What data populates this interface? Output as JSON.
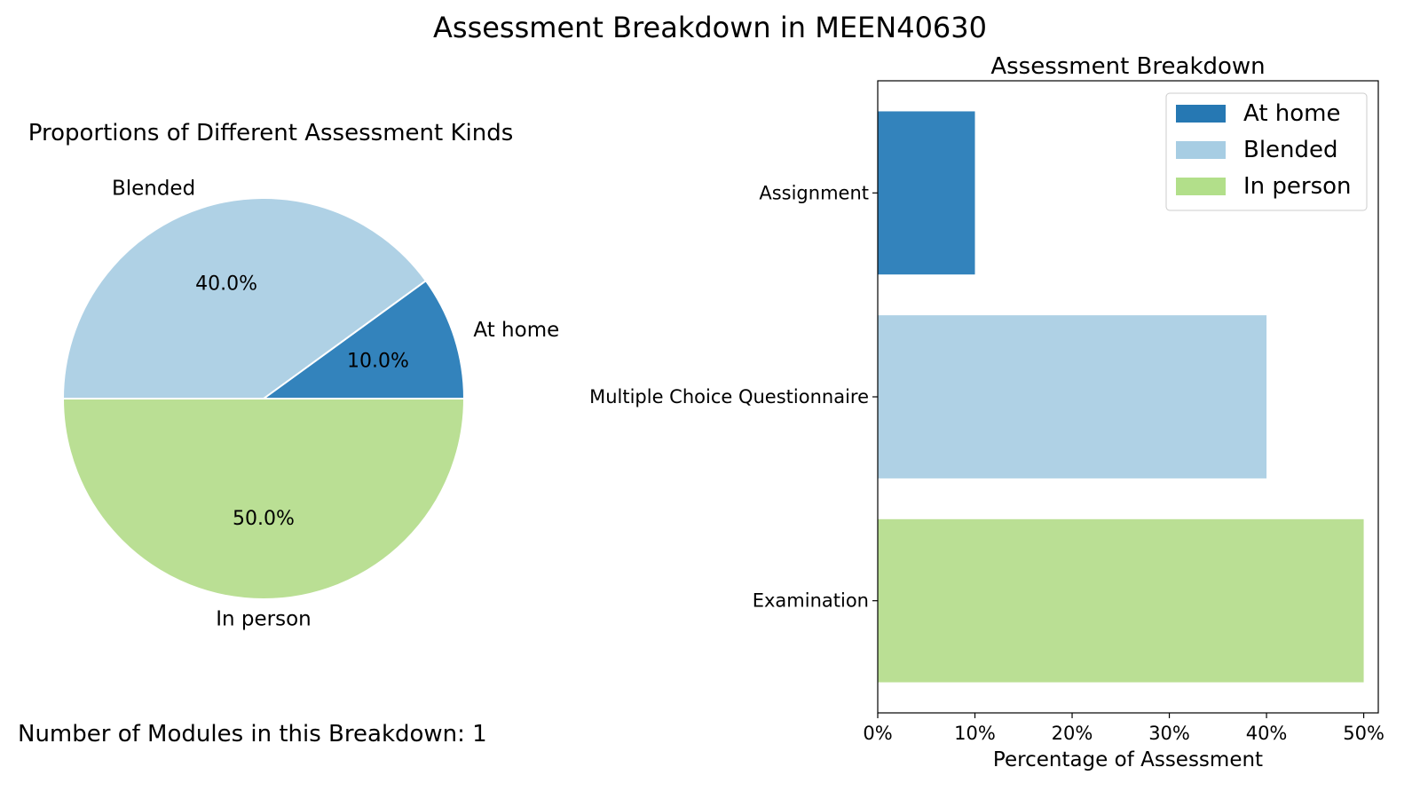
{
  "figure": {
    "title": "Assessment Breakdown in MEEN40630",
    "footer_label": "Number of Modules in this Breakdown: 1"
  },
  "chart_data": [
    {
      "type": "pie",
      "title": "Proportions of Different Assessment Kinds",
      "slices": [
        {
          "label": "At home",
          "value": 10.0,
          "pct_label": "10.0%",
          "color": "#3383bc"
        },
        {
          "label": "Blended",
          "value": 40.0,
          "pct_label": "40.0%",
          "color": "#afd1e5"
        },
        {
          "label": "In person",
          "value": 50.0,
          "pct_label": "50.0%",
          "color": "#badf94"
        }
      ],
      "start_angle_deg": 0,
      "direction": "counterclockwise",
      "edge_color": "#ffffff"
    },
    {
      "type": "bar",
      "orientation": "horizontal",
      "title": "Assessment Breakdown",
      "categories": [
        "Assignment",
        "Multiple Choice Questionnaire",
        "Examination"
      ],
      "values": [
        10,
        40,
        50
      ],
      "colors": [
        "#3383bc",
        "#afd1e5",
        "#badf94"
      ],
      "xlabel": "Percentage of Assessment",
      "ylabel": "",
      "xlim": [
        0,
        51.5
      ],
      "xticks": [
        0,
        10,
        20,
        30,
        40,
        50
      ],
      "xtick_labels": [
        "0%",
        "10%",
        "20%",
        "30%",
        "40%",
        "50%"
      ],
      "grid": false,
      "legend": {
        "position": "top-right",
        "entries": [
          {
            "label": "At home",
            "color": "#2678b3"
          },
          {
            "label": "Blended",
            "color": "#a7cde3"
          },
          {
            "label": "In person",
            "color": "#b2df8a"
          }
        ]
      }
    }
  ]
}
